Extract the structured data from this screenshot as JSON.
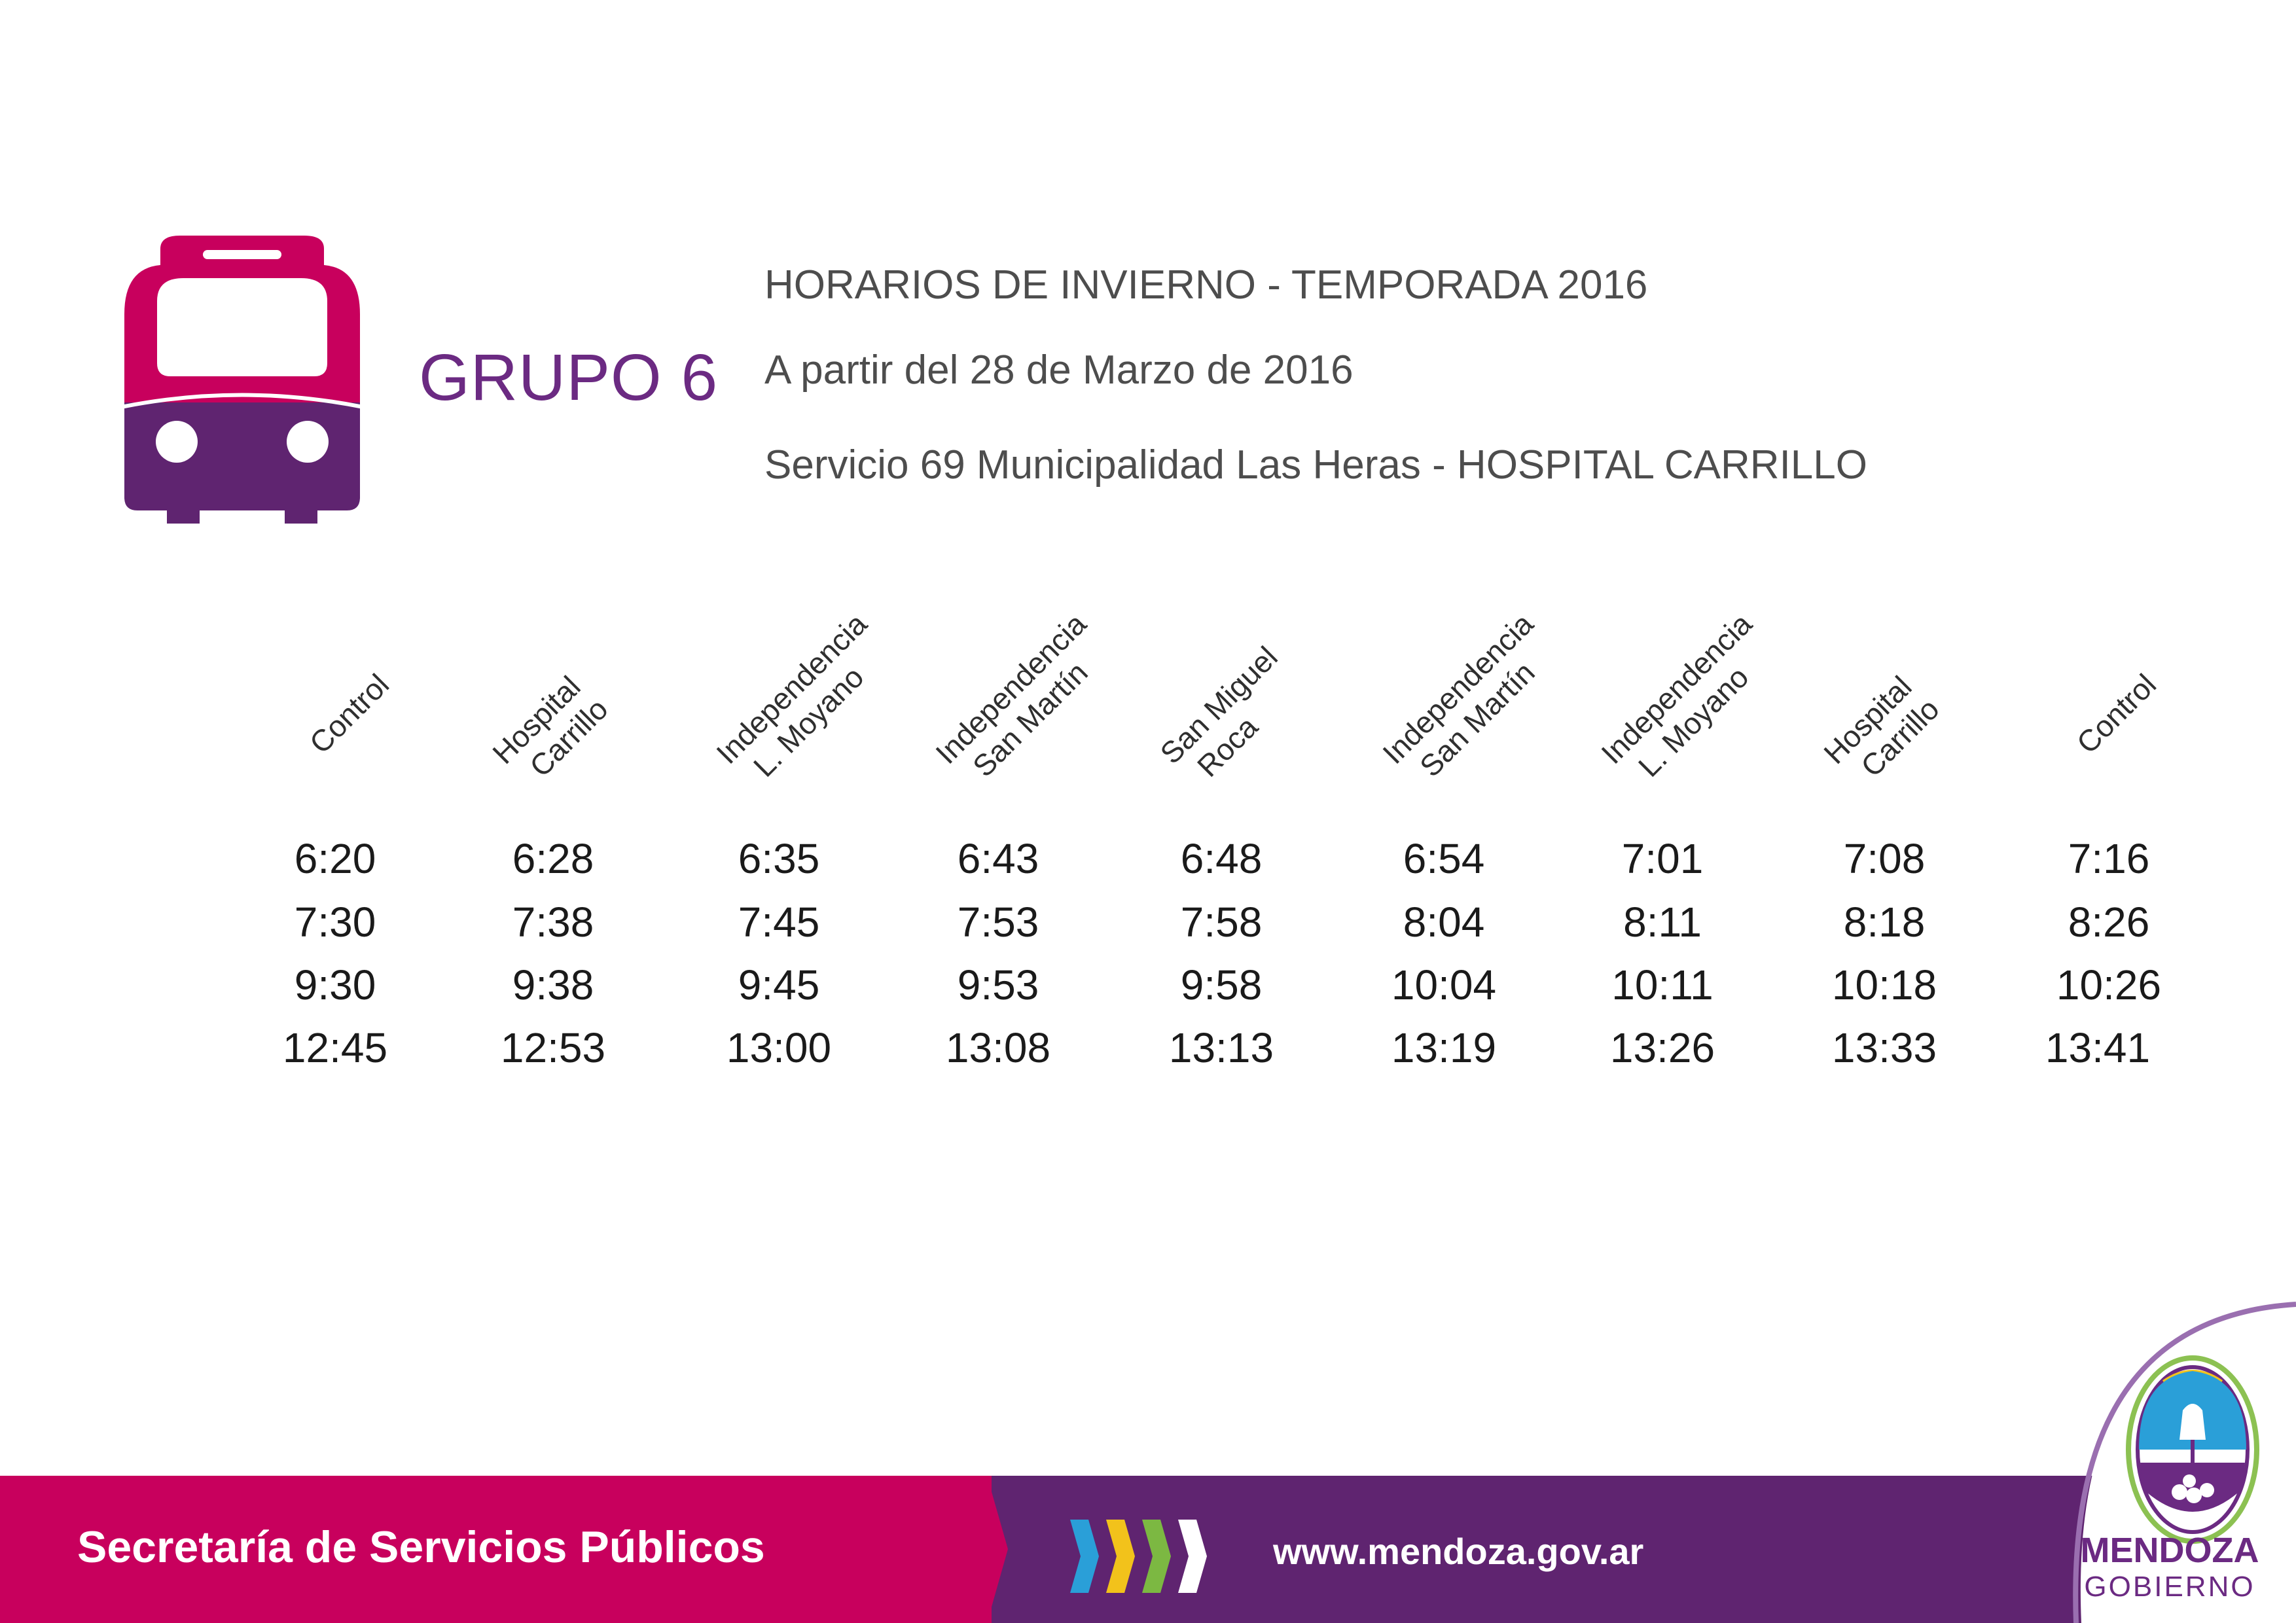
{
  "colors": {
    "magenta": "#c8005d",
    "purple": "#5f2470",
    "title_purple": "#6b2a82",
    "chevrons": [
      "#2a9fd8",
      "#f2c21b",
      "#7cb842",
      "#ffffff"
    ]
  },
  "icons": {
    "bus": "bus-front-icon",
    "chevrons": "chevron-arrows-icon",
    "coat_of_arms": "mendoza-coat-of-arms-icon"
  },
  "header": {
    "group": "GRUPO 6",
    "season": "HORARIOS DE INVIERNO - TEMPORADA 2016",
    "start": "A partir del 28 de Marzo de 2016",
    "service": "Servicio 69  Municipalidad Las Heras - HOSPITAL CARRILLO"
  },
  "schedule": {
    "stops": [
      {
        "line1": "Control",
        "line2": ""
      },
      {
        "line1": "Hospital",
        "line2": "Carrillo"
      },
      {
        "line1": "Independencia",
        "line2": "L. Moyano"
      },
      {
        "line1": "Independencia",
        "line2": "San Martín"
      },
      {
        "line1": "San Miguel",
        "line2": "Roca"
      },
      {
        "line1": "Independencia",
        "line2": "San Martín"
      },
      {
        "line1": "Independencia",
        "line2": "L. Moyano"
      },
      {
        "line1": "Hospital",
        "line2": "Carrillo"
      },
      {
        "line1": "Control",
        "line2": ""
      }
    ],
    "rows": [
      [
        "6:20",
        "6:28",
        "6:35",
        "6:43",
        "6:48",
        "6:54",
        "7:01",
        "7:08",
        "7:16"
      ],
      [
        "7:30",
        "7:38",
        "7:45",
        "7:53",
        "7:58",
        "8:04",
        "8:11",
        "8:18",
        "8:26"
      ],
      [
        "9:30",
        "9:38",
        "9:45",
        "9:53",
        "9:58",
        "10:04",
        "10:11",
        "10:18",
        "10:26"
      ],
      [
        "12:45",
        "12:53",
        "13:00",
        "13:08",
        "13:13",
        "13:19",
        "13:26",
        "13:33",
        "13:41"
      ]
    ]
  },
  "footer": {
    "secretaria": "Secretaría de Servicios Públicos",
    "url": "www.mendoza.gov.ar",
    "logo_name": "MENDOZA",
    "logo_sub": "GOBIERNO"
  }
}
